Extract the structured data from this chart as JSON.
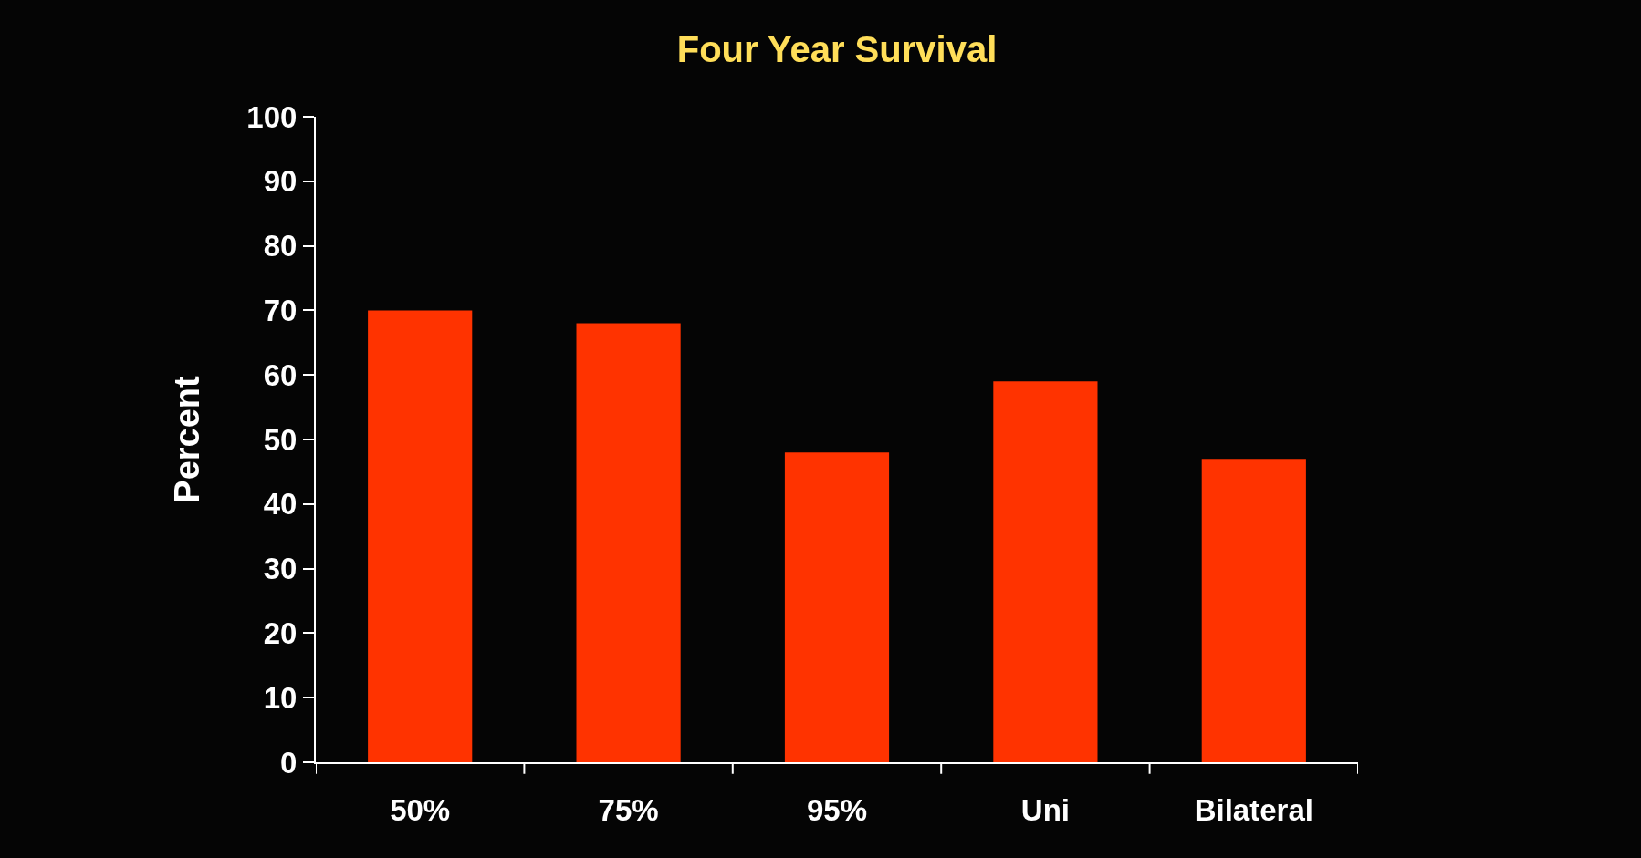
{
  "chart_data": {
    "type": "bar",
    "title": "Four Year Survival",
    "ylabel": "Percent",
    "categories": [
      "50%",
      "75%",
      "95%",
      "Uni",
      "Bilateral"
    ],
    "values": [
      70,
      68,
      48,
      59,
      47
    ],
    "color": "#ff3300",
    "ylim": [
      0,
      100
    ],
    "yticks": [
      0,
      10,
      20,
      30,
      40,
      50,
      60,
      70,
      80,
      90,
      100
    ],
    "grid": false
  }
}
